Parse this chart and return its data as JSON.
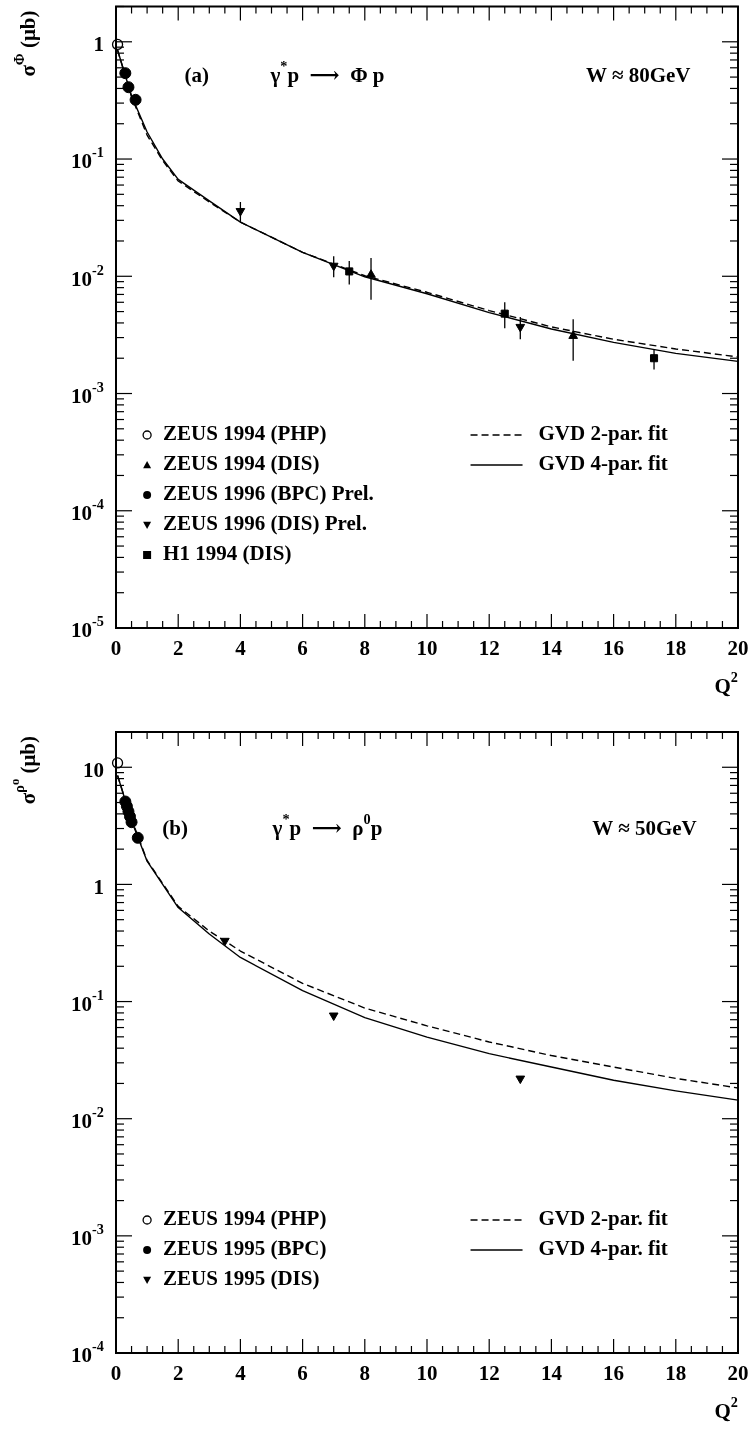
{
  "chart_data": [
    {
      "type": "scatter",
      "xlabel": "Q$^{2}$",
      "ylabel": "σ$^{Φ}$ (μb)",
      "annotations": [
        "(a)",
        "γ$^{*}$p  ⟶  Φ p",
        "W ≈ 80GeV"
      ],
      "xlim": [
        0,
        20
      ],
      "xticks": [
        0,
        2,
        4,
        6,
        8,
        10,
        12,
        14,
        16,
        18,
        20
      ],
      "ylim": [
        1e-05,
        2
      ],
      "log": "y",
      "yticks": [
        {
          "value": 1e-05,
          "label": "10$^{-5}$"
        },
        {
          "value": 0.0001,
          "label": "10$^{-4}$"
        },
        {
          "value": 0.001,
          "label": "10$^{-3}$"
        },
        {
          "value": 0.01,
          "label": "10$^{-2}$"
        },
        {
          "value": 0.1,
          "label": "10$^{-1}$"
        },
        {
          "value": 1,
          "label": "1"
        }
      ],
      "grid": false,
      "legend": "bottom",
      "series": [
        {
          "name": "ZEUS 1994 (PHP)",
          "color": "#000000",
          "marker": "circle_open",
          "x": [
            0.05
          ],
          "values": [
            0.95
          ]
        },
        {
          "name": "ZEUS 1994 (DIS)",
          "color": "#000000",
          "marker": "triangle",
          "x": [
            8.2,
            14.7
          ],
          "values": [
            0.0103,
            0.0031
          ],
          "errors": [
            0.004,
            0.0012
          ]
        },
        {
          "name": "ZEUS 1996 (BPC) Prel.",
          "color": "#000000",
          "marker": "circle",
          "x": [
            0.3,
            0.4,
            0.63
          ],
          "values": [
            0.54,
            0.41,
            0.32
          ]
        },
        {
          "name": "ZEUS 1996 (DIS) Prel.",
          "color": "#000000",
          "marker": "triangle_down",
          "x": [
            4,
            7,
            13
          ],
          "values": [
            0.036,
            0.0123,
            0.0037
          ],
          "errors": [
            0.007,
            0.0025,
            0.0008
          ]
        },
        {
          "name": "H1 1994 (DIS)",
          "color": "#000000",
          "marker": "square",
          "x": [
            7.5,
            12.5,
            17.3
          ],
          "values": [
            0.011,
            0.0048,
            0.002
          ],
          "errors": [
            0.0025,
            0.0012,
            0.0004
          ]
        },
        {
          "name": "GVD 2-par. fit",
          "type": "line",
          "color": "#000000",
          "marker": "none",
          "line_style": "dashed",
          "x": [
            0.05,
            0.5,
            1,
            1.5,
            2,
            3,
            4,
            6,
            8,
            10,
            12,
            14,
            16,
            18,
            20
          ],
          "values": [
            0.85,
            0.34,
            0.16,
            0.097,
            0.065,
            0.043,
            0.029,
            0.016,
            0.0101,
            0.0073,
            0.0051,
            0.0037,
            0.0029,
            0.0024,
            0.00205
          ]
        },
        {
          "name": "GVD 4-par. fit",
          "type": "line",
          "color": "#000000",
          "marker": "none",
          "line_style": "solid",
          "x": [
            0.05,
            0.5,
            1,
            1.5,
            2,
            3,
            4,
            6,
            8,
            10,
            12,
            14,
            16,
            18,
            20
          ],
          "values": [
            0.85,
            0.345,
            0.17,
            0.1,
            0.067,
            0.044,
            0.029,
            0.016,
            0.0099,
            0.0071,
            0.0049,
            0.00355,
            0.00273,
            0.0022,
            0.00188
          ]
        }
      ]
    },
    {
      "type": "scatter",
      "xlabel": "Q$^{2}$",
      "ylabel": "σ$^{ρ⁰}$ (μb)",
      "annotations": [
        "(b)",
        "γ$^{*}$p  ⟶  ρ$^{0}$p",
        "W ≈ 50GeV"
      ],
      "xlim": [
        0,
        20
      ],
      "xticks": [
        0,
        2,
        4,
        6,
        8,
        10,
        12,
        14,
        16,
        18,
        20
      ],
      "ylim": [
        0.0001,
        20
      ],
      "log": "y",
      "yticks": [
        {
          "value": 0.0001,
          "label": "10$^{-4}$"
        },
        {
          "value": 0.001,
          "label": "10$^{-3}$"
        },
        {
          "value": 0.01,
          "label": "10$^{-2}$"
        },
        {
          "value": 0.1,
          "label": "10$^{-1}$"
        },
        {
          "value": 1,
          "label": "1"
        },
        {
          "value": 10,
          "label": "10"
        }
      ],
      "grid": false,
      "legend": "bottom",
      "series": [
        {
          "name": "ZEUS 1994 (PHP)",
          "color": "#000000",
          "marker": "circle_open",
          "x": [
            0.05
          ],
          "values": [
            10.9
          ]
        },
        {
          "name": "ZEUS 1995 (BPC)",
          "color": "#000000",
          "marker": "circle",
          "x": [
            0.3,
            0.35,
            0.4,
            0.45,
            0.5,
            0.7
          ],
          "values": [
            5.1,
            4.65,
            4.2,
            3.8,
            3.4,
            2.5
          ]
        },
        {
          "name": "ZEUS 1995 (DIS)",
          "color": "#000000",
          "marker": "triangle_down",
          "x": [
            3.5,
            7,
            13
          ],
          "values": [
            0.33,
            0.076,
            0.022
          ]
        },
        {
          "name": "GVD 2-par. fit",
          "type": "line",
          "color": "#000000",
          "marker": "none",
          "line_style": "dashed",
          "x": [
            0.05,
            0.5,
            1,
            2,
            3,
            4,
            6,
            8,
            10,
            12,
            14,
            16,
            18,
            20
          ],
          "values": [
            8.5,
            3.6,
            1.6,
            0.65,
            0.4,
            0.27,
            0.143,
            0.088,
            0.062,
            0.0452,
            0.0346,
            0.0276,
            0.0221,
            0.0183
          ]
        },
        {
          "name": "GVD 4-par. fit",
          "type": "line",
          "color": "#000000",
          "marker": "none",
          "line_style": "solid",
          "x": [
            0.05,
            0.5,
            1,
            2,
            3,
            4,
            6,
            8,
            10,
            12,
            14,
            16,
            18,
            20
          ],
          "values": [
            8.5,
            3.5,
            1.58,
            0.635,
            0.377,
            0.238,
            0.124,
            0.073,
            0.0497,
            0.0359,
            0.0276,
            0.0213,
            0.0173,
            0.0144
          ]
        }
      ]
    }
  ]
}
